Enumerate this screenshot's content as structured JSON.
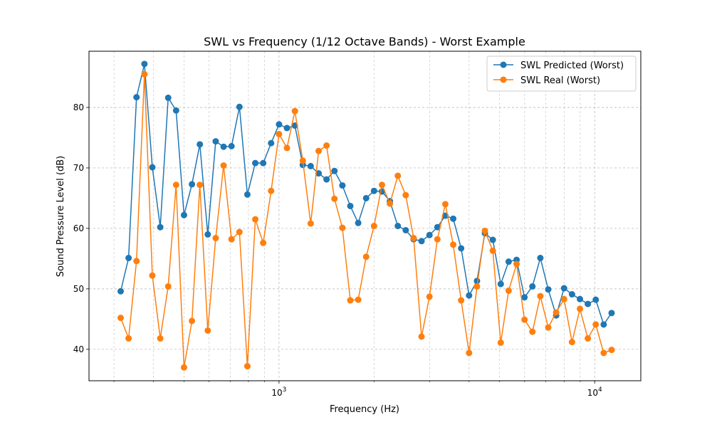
{
  "chart_data": {
    "type": "line",
    "title": "SWL vs Frequency (1/12 Octave Bands) - Worst Example",
    "xlabel": "Frequency (Hz)",
    "ylabel": "Sound Pressure Level (dB)",
    "x_scale": "log",
    "x_tick_labels": [
      "10^3",
      "10^4"
    ],
    "y_ticks": [
      40,
      50,
      60,
      70,
      80
    ],
    "xlim": [
      250,
      14000
    ],
    "ylim": [
      34.8,
      89.3
    ],
    "grid": true,
    "legend_position": "top-right",
    "x": [
      314.98,
      333.71,
      353.55,
      374.58,
      396.85,
      420.45,
      445.45,
      471.94,
      500.0,
      529.73,
      561.23,
      594.6,
      629.96,
      667.42,
      707.11,
      749.15,
      793.7,
      840.9,
      890.9,
      943.87,
      1000.0,
      1059.46,
      1122.46,
      1189.21,
      1259.92,
      1334.84,
      1414.21,
      1498.31,
      1587.4,
      1681.79,
      1781.8,
      1887.75,
      2000.0,
      2118.93,
      2244.92,
      2378.41,
      2519.84,
      2669.68,
      2828.43,
      2996.61,
      3174.8,
      3363.59,
      3563.59,
      3775.5,
      4000.0,
      4237.85,
      4489.85,
      4756.83,
      5039.68,
      5339.36,
      5656.85,
      5993.23,
      6349.6,
      6727.17,
      7127.19,
      7551.0,
      8000.0,
      8475.7,
      8979.7,
      9513.66,
      10079.37,
      10678.72,
      11313.71
    ],
    "series": [
      {
        "name": "SWL Predicted (Worst)",
        "color": "#1f77b4",
        "values": [
          49.6,
          55.1,
          81.7,
          87.2,
          70.1,
          60.2,
          81.6,
          79.5,
          62.2,
          67.3,
          73.9,
          59.0,
          74.4,
          73.5,
          73.6,
          80.1,
          65.6,
          70.8,
          70.8,
          74.1,
          77.2,
          76.6,
          77.0,
          70.5,
          70.3,
          69.1,
          68.1,
          69.5,
          67.1,
          63.7,
          60.9,
          65.0,
          66.2,
          66.1,
          64.5,
          60.4,
          59.7,
          58.2,
          57.9,
          58.9,
          60.2,
          62.1,
          61.6,
          56.7,
          48.9,
          51.3,
          59.2,
          58.1,
          50.8,
          54.5,
          54.8,
          48.6,
          50.4,
          55.1,
          49.9,
          45.6,
          50.1,
          49.1,
          48.3,
          47.5,
          48.2,
          44.1,
          46.0
        ]
      },
      {
        "name": "SWL Real (Worst)",
        "color": "#ff7f0e",
        "values": [
          45.2,
          41.8,
          54.6,
          85.5,
          52.2,
          41.8,
          50.4,
          67.2,
          37.0,
          44.7,
          67.2,
          43.1,
          58.4,
          70.4,
          58.2,
          59.4,
          37.2,
          61.5,
          57.6,
          66.2,
          75.6,
          73.3,
          79.4,
          71.2,
          60.8,
          72.8,
          73.7,
          64.9,
          60.1,
          48.1,
          48.2,
          55.3,
          60.4,
          67.2,
          64.1,
          68.7,
          65.5,
          58.4,
          42.1,
          48.7,
          58.2,
          64.0,
          57.3,
          48.1,
          39.4,
          50.4,
          59.6,
          56.3,
          41.1,
          49.7,
          54.1,
          44.9,
          42.9,
          48.8,
          43.6,
          46.1,
          48.3,
          41.2,
          46.7,
          41.8,
          44.1,
          39.4,
          39.9
        ]
      }
    ]
  }
}
